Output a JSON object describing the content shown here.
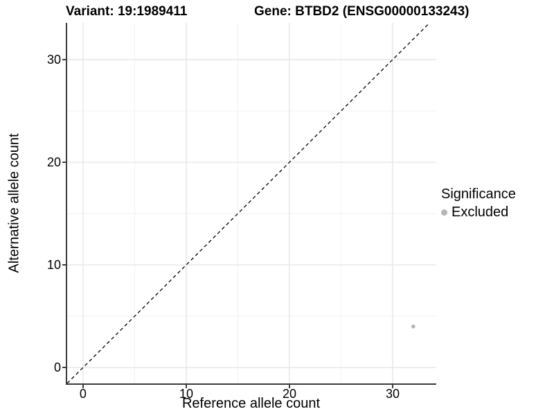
{
  "chart_data": {
    "type": "scatter",
    "title_left": "Variant: 19:1989411",
    "title_right": "Gene: BTBD2 (ENSG00000133243)",
    "xlabel": "Reference allele count",
    "ylabel": "Alternative allele count",
    "x_ticks": [
      0,
      10,
      20,
      30
    ],
    "y_ticks": [
      0,
      10,
      20,
      30
    ],
    "xlim": [
      -1.54,
      34.23
    ],
    "ylim": [
      -1.55,
      33.58
    ],
    "grid": true,
    "identity_line": {
      "slope": 1,
      "intercept": 0,
      "style": "dashed"
    },
    "points": [
      {
        "x": 32,
        "y": 4,
        "series": "Excluded"
      }
    ],
    "legend": {
      "position": "right",
      "title": "Significance",
      "entries": [
        {
          "label": "Excluded",
          "color": "#b5b5b5"
        }
      ]
    },
    "colors": {
      "axis_line": "#3c3c3c",
      "grid_major": "#e6e6e6",
      "grid_minor": "#f2f2f2",
      "identity_line": "#000000",
      "background": "#ffffff"
    }
  }
}
